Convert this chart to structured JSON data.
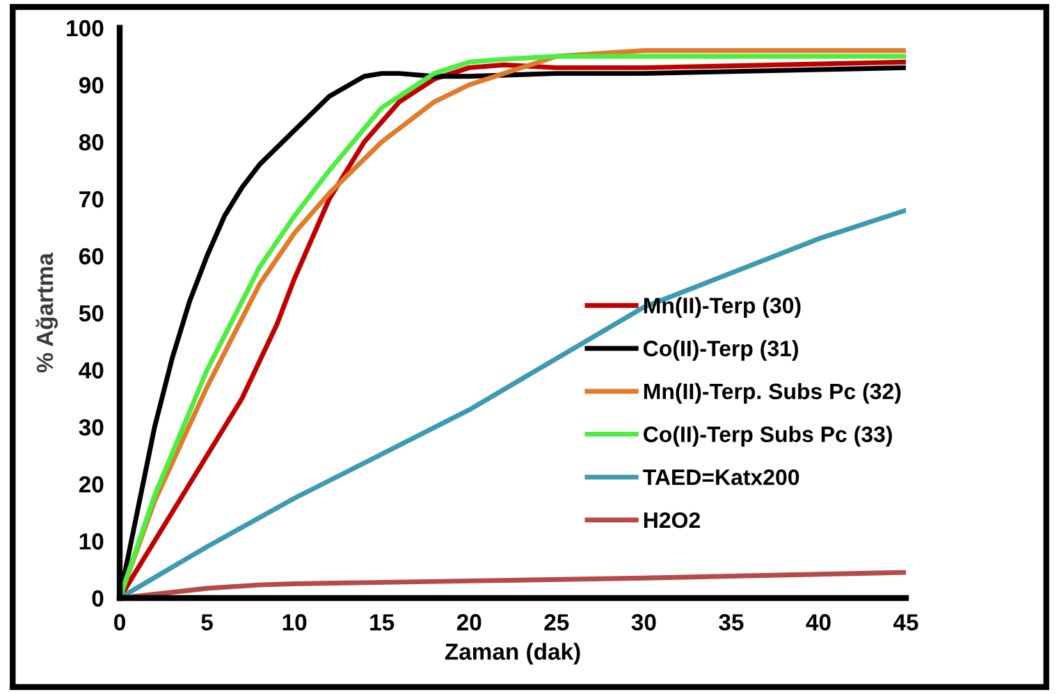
{
  "chart_data": {
    "type": "line",
    "xlabel": "Zaman (dak)",
    "ylabel": "% Ağartma",
    "xlim": [
      0,
      45
    ],
    "ylim": [
      0,
      100
    ],
    "xticks": [
      0,
      5,
      10,
      15,
      20,
      25,
      30,
      35,
      40,
      45
    ],
    "yticks": [
      0,
      10,
      20,
      30,
      40,
      50,
      60,
      70,
      80,
      90,
      100
    ],
    "grid": false,
    "legend": "right",
    "marker": "none",
    "line_style": "solid",
    "series": [
      {
        "name": "Mn(II)-Terp (30)",
        "color": "#c00000",
        "x": [
          0,
          2,
          4,
          5,
          7,
          9,
          10,
          12,
          14,
          16,
          18,
          20,
          22,
          25,
          30,
          45
        ],
        "values": [
          0,
          10,
          20,
          25,
          35,
          48,
          56,
          70,
          80,
          87,
          91,
          93,
          93.5,
          93,
          93,
          94
        ]
      },
      {
        "name": "Co(II)-Terp (31)",
        "color": "#000000",
        "x": [
          0,
          1,
          2,
          3,
          4,
          5,
          6,
          7,
          8,
          10,
          12,
          14,
          15,
          16,
          18,
          20,
          25,
          30,
          45
        ],
        "values": [
          0,
          15,
          30,
          42,
          52,
          60,
          67,
          72,
          76,
          82,
          88,
          91.5,
          92,
          92,
          91.5,
          91.5,
          92,
          92,
          93
        ]
      },
      {
        "name": "Mn(II)-Terp. Subs Pc (32)",
        "color": "#e07b2a",
        "x": [
          0,
          2,
          5,
          8,
          10,
          12,
          15,
          18,
          20,
          25,
          30,
          45
        ],
        "values": [
          0,
          17,
          37,
          55,
          64,
          71,
          80,
          87,
          90,
          95,
          96,
          96
        ]
      },
      {
        "name": "Co(II)-Terp Subs Pc (33)",
        "color": "#4cee3f",
        "x": [
          0,
          2,
          5,
          8,
          10,
          12,
          15,
          18,
          20,
          22,
          25,
          30,
          45
        ],
        "values": [
          0,
          18,
          40,
          58,
          67,
          75,
          86,
          92,
          94,
          94.5,
          95,
          95,
          95
        ]
      },
      {
        "name": "TAED=Katx200",
        "color": "#3d9ab2",
        "x": [
          0,
          5,
          10,
          20,
          30,
          40,
          45
        ],
        "values": [
          0,
          9,
          17.5,
          33,
          51,
          63,
          68
        ]
      },
      {
        "name": "H2O2",
        "color": "#b54a4a",
        "x": [
          0,
          3,
          5,
          8,
          10,
          20,
          30,
          45
        ],
        "values": [
          0,
          1,
          1.7,
          2.3,
          2.5,
          3,
          3.5,
          4.5
        ]
      }
    ]
  }
}
